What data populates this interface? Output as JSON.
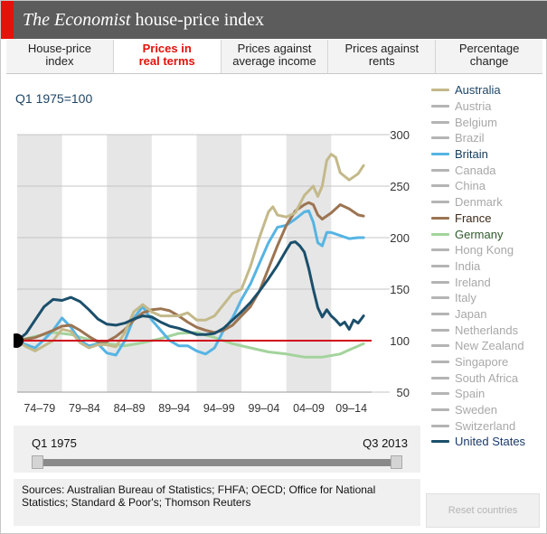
{
  "header": {
    "title_brand": "The Economist",
    "title_rest": " house-price index"
  },
  "tabs": [
    {
      "label_line1": "House-price",
      "label_line2": "index",
      "active": false
    },
    {
      "label_line1": "Prices in",
      "label_line2": "real terms",
      "active": true
    },
    {
      "label_line1": "Prices against",
      "label_line2": "average income",
      "active": false
    },
    {
      "label_line1": "Prices against",
      "label_line2": "rents",
      "active": false
    },
    {
      "label_line1": "Percentage",
      "label_line2": "change",
      "active": false
    }
  ],
  "index_label": "Q1 1975=100",
  "legend": [
    {
      "label": "Australia",
      "color": "#c3b98a",
      "selected": true
    },
    {
      "label": "Austria",
      "color": "#b4b4b4",
      "selected": false
    },
    {
      "label": "Belgium",
      "color": "#b4b4b4",
      "selected": false
    },
    {
      "label": "Brazil",
      "color": "#b4b4b4",
      "selected": false
    },
    {
      "label": "Britain",
      "color": "#56b4e3",
      "selected": true
    },
    {
      "label": "Canada",
      "color": "#b4b4b4",
      "selected": false
    },
    {
      "label": "China",
      "color": "#b4b4b4",
      "selected": false
    },
    {
      "label": "Denmark",
      "color": "#b4b4b4",
      "selected": false
    },
    {
      "label": "France",
      "color": "#9c7452",
      "selected": true
    },
    {
      "label": "Germany",
      "color": "#a3d39c",
      "selected": true
    },
    {
      "label": "Hong Kong",
      "color": "#b4b4b4",
      "selected": false
    },
    {
      "label": "India",
      "color": "#b4b4b4",
      "selected": false
    },
    {
      "label": "Ireland",
      "color": "#b4b4b4",
      "selected": false
    },
    {
      "label": "Italy",
      "color": "#b4b4b4",
      "selected": false
    },
    {
      "label": "Japan",
      "color": "#b4b4b4",
      "selected": false
    },
    {
      "label": "Netherlands",
      "color": "#b4b4b4",
      "selected": false
    },
    {
      "label": "New Zealand",
      "color": "#b4b4b4",
      "selected": false
    },
    {
      "label": "Singapore",
      "color": "#b4b4b4",
      "selected": false
    },
    {
      "label": "South Africa",
      "color": "#b4b4b4",
      "selected": false
    },
    {
      "label": "Spain",
      "color": "#b4b4b4",
      "selected": false
    },
    {
      "label": "Sweden",
      "color": "#b4b4b4",
      "selected": false
    },
    {
      "label": "Switzerland",
      "color": "#b4b4b4",
      "selected": false
    },
    {
      "label": "United States",
      "color": "#1b4f6b",
      "selected": true
    }
  ],
  "slider": {
    "start_label": "Q1 1975",
    "end_label": "Q3 2013"
  },
  "sources": "Sources: Australian Bureau of Statistics; FHFA; OECD; Office for National Statistics; Standard & Poor's; Thomson Reuters",
  "reset_label": "Reset countries",
  "chart_data": {
    "type": "line",
    "title": "",
    "xlabel": "",
    "ylabel": "Q1 1975=100",
    "xlim": [
      1975,
      2014.5
    ],
    "ylim": [
      50,
      300
    ],
    "yticks": [
      50,
      100,
      150,
      200,
      250,
      300
    ],
    "ytick_labels": [
      "50",
      "100",
      "150",
      "200",
      "250",
      "300"
    ],
    "baseline": 100,
    "baseline_color": "#d0021b",
    "period_bands": [
      {
        "label": "74–79",
        "start": 1975,
        "end": 1980,
        "shaded": true
      },
      {
        "label": "79–84",
        "start": 1980,
        "end": 1985,
        "shaded": false
      },
      {
        "label": "84–89",
        "start": 1985,
        "end": 1990,
        "shaded": true
      },
      {
        "label": "89–94",
        "start": 1990,
        "end": 1995,
        "shaded": false
      },
      {
        "label": "94–99",
        "start": 1995,
        "end": 2000,
        "shaded": true
      },
      {
        "label": "99–04",
        "start": 2000,
        "end": 2005,
        "shaded": false
      },
      {
        "label": "04–09",
        "start": 2005,
        "end": 2010,
        "shaded": true
      },
      {
        "label": "09–14",
        "start": 2010,
        "end": 2014.5,
        "shaded": false
      }
    ],
    "series": [
      {
        "name": "Germany",
        "color": "#a3d39c",
        "x": [
          1975,
          1977,
          1979,
          1981,
          1983,
          1985,
          1987,
          1989,
          1991,
          1993,
          1995,
          1997,
          1999,
          2001,
          2003,
          2005,
          2007,
          2009,
          2011,
          2012,
          2013.6
        ],
        "y": [
          100,
          104,
          108,
          106,
          101,
          97,
          95,
          98,
          102,
          107,
          108,
          103,
          97,
          93,
          89,
          87,
          84,
          84,
          87,
          91,
          97
        ]
      },
      {
        "name": "Britain",
        "color": "#56b4e3",
        "x": [
          1975,
          1976,
          1977,
          1978,
          1979,
          1980,
          1981,
          1982,
          1983,
          1984,
          1985,
          1986,
          1987,
          1988,
          1989,
          1990,
          1991,
          1992,
          1993,
          1994,
          1995,
          1996,
          1997,
          1998,
          1999,
          2000,
          2001,
          2002,
          2003,
          2004,
          2005,
          2006,
          2007,
          2007.5,
          2008,
          2008.5,
          2009,
          2009.5,
          2010,
          2011,
          2012,
          2013,
          2013.6
        ],
        "y": [
          100,
          96,
          93,
          101,
          110,
          122,
          113,
          100,
          95,
          97,
          88,
          86,
          100,
          122,
          133,
          120,
          110,
          100,
          95,
          95,
          90,
          87,
          93,
          110,
          122,
          140,
          155,
          175,
          195,
          210,
          212,
          218,
          225,
          226,
          215,
          195,
          192,
          205,
          205,
          202,
          199,
          200,
          200
        ]
      },
      {
        "name": "France",
        "color": "#9c7452",
        "x": [
          1975,
          1977,
          1979,
          1980,
          1981,
          1982,
          1983,
          1984,
          1985,
          1986,
          1987,
          1988,
          1989,
          1990,
          1991,
          1992,
          1993,
          1994,
          1995,
          1996,
          1997,
          1998,
          1999,
          2000,
          2001,
          2002,
          2003,
          2004,
          2005,
          2006,
          2007,
          2007.5,
          2008,
          2008.5,
          2009,
          2010,
          2011,
          2012,
          2013,
          2013.6
        ],
        "y": [
          100,
          103,
          110,
          114,
          115,
          110,
          104,
          99,
          99,
          104,
          111,
          120,
          127,
          130,
          131,
          129,
          124,
          118,
          113,
          110,
          108,
          110,
          115,
          124,
          133,
          148,
          170,
          192,
          212,
          226,
          232,
          234,
          232,
          222,
          218,
          224,
          232,
          228,
          222,
          221
        ]
      },
      {
        "name": "Australia",
        "color": "#c3b98a",
        "x": [
          1975,
          1976,
          1977,
          1978,
          1979,
          1980,
          1981,
          1982,
          1983,
          1984,
          1985,
          1986,
          1987,
          1988,
          1989,
          1990,
          1991,
          1992,
          1993,
          1994,
          1995,
          1996,
          1997,
          1998,
          1999,
          2000,
          2001,
          2002,
          2003,
          2003.5,
          2004,
          2005,
          2006,
          2007,
          2008,
          2008.5,
          2009,
          2009.5,
          2010,
          2010.5,
          2011,
          2012,
          2013,
          2013.6
        ],
        "y": [
          100,
          94,
          90,
          95,
          100,
          111,
          109,
          98,
          93,
          96,
          96,
          94,
          108,
          128,
          135,
          128,
          124,
          124,
          124,
          127,
          120,
          120,
          124,
          135,
          146,
          150,
          172,
          200,
          225,
          230,
          222,
          220,
          224,
          241,
          250,
          240,
          250,
          275,
          281,
          278,
          263,
          256,
          262,
          270
        ]
      },
      {
        "name": "United States",
        "color": "#1b4f6b",
        "x": [
          1975,
          1976,
          1977,
          1978,
          1979,
          1980,
          1981,
          1982,
          1983,
          1984,
          1985,
          1986,
          1987,
          1988,
          1989,
          1990,
          1991,
          1992,
          1993,
          1994,
          1995,
          1996,
          1997,
          1998,
          1999,
          2000,
          2001,
          2002,
          2003,
          2004,
          2005,
          2005.5,
          2006,
          2006.5,
          2007,
          2007.5,
          2008,
          2008.5,
          2009,
          2009.5,
          2010,
          2010.5,
          2011,
          2011.5,
          2012,
          2012.5,
          2013,
          2013.6
        ],
        "y": [
          100,
          107,
          120,
          133,
          140,
          139,
          142,
          138,
          130,
          121,
          116,
          115,
          117,
          121,
          124,
          123,
          118,
          114,
          112,
          109,
          106,
          106,
          107,
          112,
          120,
          128,
          137,
          148,
          160,
          173,
          188,
          195,
          196,
          192,
          186,
          170,
          150,
          132,
          123,
          130,
          124,
          120,
          115,
          118,
          111,
          120,
          117,
          124
        ]
      }
    ]
  }
}
